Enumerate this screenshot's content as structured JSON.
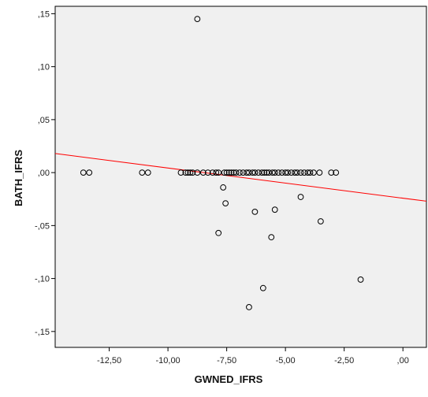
{
  "chart_data": {
    "type": "scatter",
    "xlabel": "GWNED_IFRS",
    "ylabel": "BATH_IFRS",
    "xlim": [
      -14.8,
      1.0
    ],
    "ylim": [
      -0.165,
      0.157
    ],
    "x_ticks": [
      -12.5,
      -10.0,
      -7.5,
      -5.0,
      -2.5,
      0.0
    ],
    "x_tick_labels": [
      "-12,50",
      "-10,00",
      "-7,50",
      "-5,00",
      "-2,50",
      ",00"
    ],
    "y_ticks": [
      0.15,
      0.1,
      0.05,
      0.0,
      -0.05,
      -0.1,
      -0.15
    ],
    "y_tick_labels": [
      ",15",
      ",10",
      ",05",
      ",00",
      "-,05",
      "-,10",
      "-,15"
    ],
    "grid": false,
    "legend": "none",
    "points": [
      {
        "x": -13.6,
        "y": 0.0
      },
      {
        "x": -13.35,
        "y": 0.0
      },
      {
        "x": -11.1,
        "y": 0.0
      },
      {
        "x": -10.85,
        "y": 0.0
      },
      {
        "x": -9.45,
        "y": 0.0
      },
      {
        "x": -9.25,
        "y": 0.0
      },
      {
        "x": -9.15,
        "y": 0.0
      },
      {
        "x": -9.05,
        "y": 0.0
      },
      {
        "x": -8.95,
        "y": 0.0
      },
      {
        "x": -8.75,
        "y": 0.0
      },
      {
        "x": -8.5,
        "y": 0.0
      },
      {
        "x": -8.3,
        "y": 0.0
      },
      {
        "x": -8.1,
        "y": 0.0
      },
      {
        "x": -7.95,
        "y": 0.0
      },
      {
        "x": -7.85,
        "y": 0.0
      },
      {
        "x": -7.6,
        "y": 0.0
      },
      {
        "x": -7.5,
        "y": 0.0
      },
      {
        "x": -7.4,
        "y": 0.0
      },
      {
        "x": -7.3,
        "y": 0.0
      },
      {
        "x": -7.2,
        "y": 0.0
      },
      {
        "x": -7.1,
        "y": 0.0
      },
      {
        "x": -6.95,
        "y": 0.0
      },
      {
        "x": -6.8,
        "y": 0.0
      },
      {
        "x": -6.65,
        "y": 0.0
      },
      {
        "x": -6.55,
        "y": 0.0
      },
      {
        "x": -6.4,
        "y": 0.0
      },
      {
        "x": -6.3,
        "y": 0.0
      },
      {
        "x": -6.15,
        "y": 0.0
      },
      {
        "x": -6.0,
        "y": 0.0
      },
      {
        "x": -5.9,
        "y": 0.0
      },
      {
        "x": -5.8,
        "y": 0.0
      },
      {
        "x": -5.7,
        "y": 0.0
      },
      {
        "x": -5.55,
        "y": 0.0
      },
      {
        "x": -5.45,
        "y": 0.0
      },
      {
        "x": -5.3,
        "y": 0.0
      },
      {
        "x": -5.15,
        "y": 0.0
      },
      {
        "x": -5.0,
        "y": 0.0
      },
      {
        "x": -4.9,
        "y": 0.0
      },
      {
        "x": -4.75,
        "y": 0.0
      },
      {
        "x": -4.6,
        "y": 0.0
      },
      {
        "x": -4.5,
        "y": 0.0
      },
      {
        "x": -4.35,
        "y": 0.0
      },
      {
        "x": -4.2,
        "y": 0.0
      },
      {
        "x": -4.05,
        "y": 0.0
      },
      {
        "x": -3.95,
        "y": 0.0
      },
      {
        "x": -3.8,
        "y": 0.0
      },
      {
        "x": -3.55,
        "y": 0.0
      },
      {
        "x": -3.05,
        "y": 0.0
      },
      {
        "x": -2.85,
        "y": 0.0
      },
      {
        "x": -8.75,
        "y": 0.145
      },
      {
        "x": -7.65,
        "y": -0.014
      },
      {
        "x": -7.55,
        "y": -0.029
      },
      {
        "x": -6.3,
        "y": -0.037
      },
      {
        "x": -5.45,
        "y": -0.035
      },
      {
        "x": -4.35,
        "y": -0.023
      },
      {
        "x": -7.85,
        "y": -0.057
      },
      {
        "x": -5.6,
        "y": -0.061
      },
      {
        "x": -3.5,
        "y": -0.046
      },
      {
        "x": -5.95,
        "y": -0.109
      },
      {
        "x": -6.55,
        "y": -0.127
      },
      {
        "x": -1.8,
        "y": -0.101
      }
    ],
    "fit_line": {
      "color": "#ff0000",
      "x": [
        -14.8,
        1.0
      ],
      "y": [
        0.018,
        -0.027
      ]
    },
    "colors": {
      "plot_background": "#f0f0f0",
      "marker_stroke": "#000000",
      "fit_line": "#ff0000"
    }
  }
}
